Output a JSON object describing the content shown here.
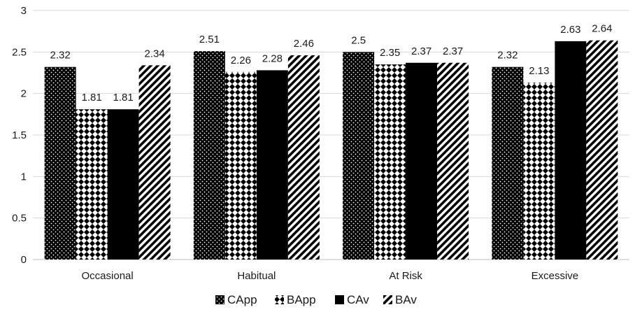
{
  "chart_data": {
    "type": "bar",
    "categories": [
      "Occasional",
      "Habitual",
      "At Risk",
      "Excessive"
    ],
    "series": [
      {
        "name": "CApp",
        "pattern": "dots",
        "values": [
          2.32,
          2.51,
          2.5,
          2.32
        ]
      },
      {
        "name": "BApp",
        "pattern": "diamonds",
        "values": [
          1.81,
          2.26,
          2.35,
          2.13
        ]
      },
      {
        "name": "CAv",
        "pattern": "solid",
        "values": [
          1.81,
          2.28,
          2.37,
          2.63
        ]
      },
      {
        "name": "BAv",
        "pattern": "diagonal-stripes",
        "values": [
          2.34,
          2.46,
          2.37,
          2.64
        ]
      }
    ],
    "value_labels": [
      [
        "2.32",
        "2.51",
        "2.5",
        "2.32"
      ],
      [
        "1.81",
        "2.26",
        "2.35",
        "2.13"
      ],
      [
        "1.81",
        "2.28",
        "2.37",
        "2.63"
      ],
      [
        "2.34",
        "2.46",
        "2.37",
        "2.64"
      ]
    ],
    "ylim": [
      0,
      3
    ],
    "yticks": [
      "0",
      "0.5",
      "1",
      "1.5",
      "2",
      "2.5",
      "3"
    ],
    "title": "",
    "xlabel": "",
    "ylabel": "",
    "grid": true,
    "legend_position": "bottom",
    "colors": {
      "bar": "#000000",
      "grid": "#d9d9d9",
      "background": "#ffffff"
    }
  }
}
